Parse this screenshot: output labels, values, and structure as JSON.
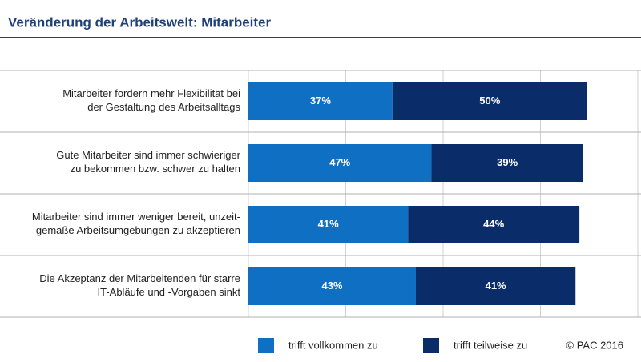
{
  "chart_data": {
    "type": "stacked-hbar",
    "title": "Veränderung der Arbeitswelt: Mitarbeiter",
    "categories": [
      "Mitarbeiter fordern mehr Flexibilität bei\nder Gestaltung des Arbeitsalltags",
      "Gute Mitarbeiter sind immer schwieriger\nzu bekommen bzw. schwer zu halten",
      "Mitarbeiter sind immer weniger bereit, unzeit-\ngemäße Arbeitsumgebungen zu akzeptieren",
      "Die Akzeptanz der Mitarbeitenden für starre\nIT-Abläufe und -Vorgaben sinkt"
    ],
    "series": [
      {
        "name": "trifft vollkommen zu",
        "color": "#0f6fc3",
        "values": [
          37,
          47,
          41,
          43
        ],
        "value_labels": [
          "37%",
          "47%",
          "41%",
          "43%"
        ]
      },
      {
        "name": "trifft teilweise zu",
        "color": "#0a2d6a",
        "values": [
          50,
          39,
          44,
          41
        ],
        "value_labels": [
          "50%",
          "39%",
          "44%",
          "41%"
        ]
      }
    ],
    "xlim": [
      0,
      100
    ],
    "xticks": [
      0,
      25,
      50,
      75,
      100
    ],
    "grid": true,
    "source": "© PAC 2016"
  }
}
